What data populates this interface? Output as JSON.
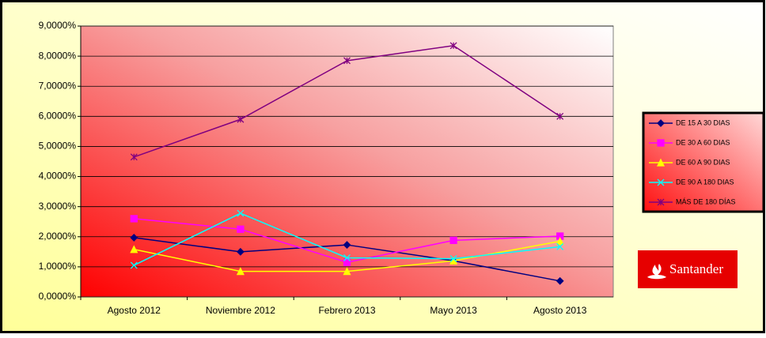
{
  "chart_data": {
    "type": "line",
    "categories": [
      "Agosto 2012",
      "Noviembre 2012",
      "Febrero 2013",
      "Mayo 2013",
      "Agosto 2013"
    ],
    "series": [
      {
        "name": "DE 15 A 30 DIAS",
        "color": "#000080",
        "marker": "diamond",
        "values": [
          1.97,
          1.5,
          1.73,
          1.2,
          0.53
        ]
      },
      {
        "name": "DE 30 A 60 DIAS",
        "color": "#ff00ff",
        "marker": "square",
        "values": [
          2.6,
          2.25,
          1.15,
          1.88,
          2.02
        ]
      },
      {
        "name": "DE 60 A 90 DIAS",
        "color": "#ffff00",
        "marker": "triangle",
        "values": [
          1.58,
          0.85,
          0.85,
          1.2,
          1.85
        ]
      },
      {
        "name": "DE 90 A 180 DIAS",
        "color": "#00ffff",
        "marker": "x",
        "values": [
          1.05,
          2.78,
          1.3,
          1.27,
          1.67
        ]
      },
      {
        "name": "MÁS DE 180 DÍAS",
        "color": "#800080",
        "marker": "star",
        "values": [
          4.65,
          5.9,
          7.85,
          8.35,
          6.0
        ]
      }
    ],
    "ylim": [
      0,
      9
    ],
    "yticks": [
      {
        "value": 0,
        "label": "0,0000%"
      },
      {
        "value": 1,
        "label": "1,0000%"
      },
      {
        "value": 2,
        "label": "2,0000%"
      },
      {
        "value": 3,
        "label": "3,0000%"
      },
      {
        "value": 4,
        "label": "4,0000%"
      },
      {
        "value": 5,
        "label": "5,0000%"
      },
      {
        "value": 6,
        "label": "6,0000%"
      },
      {
        "value": 7,
        "label": "7,0000%"
      },
      {
        "value": 8,
        "label": "8,0000%"
      },
      {
        "value": 9,
        "label": "9,0000%"
      }
    ],
    "grid": true,
    "legend": "right"
  },
  "logo": "Santander"
}
